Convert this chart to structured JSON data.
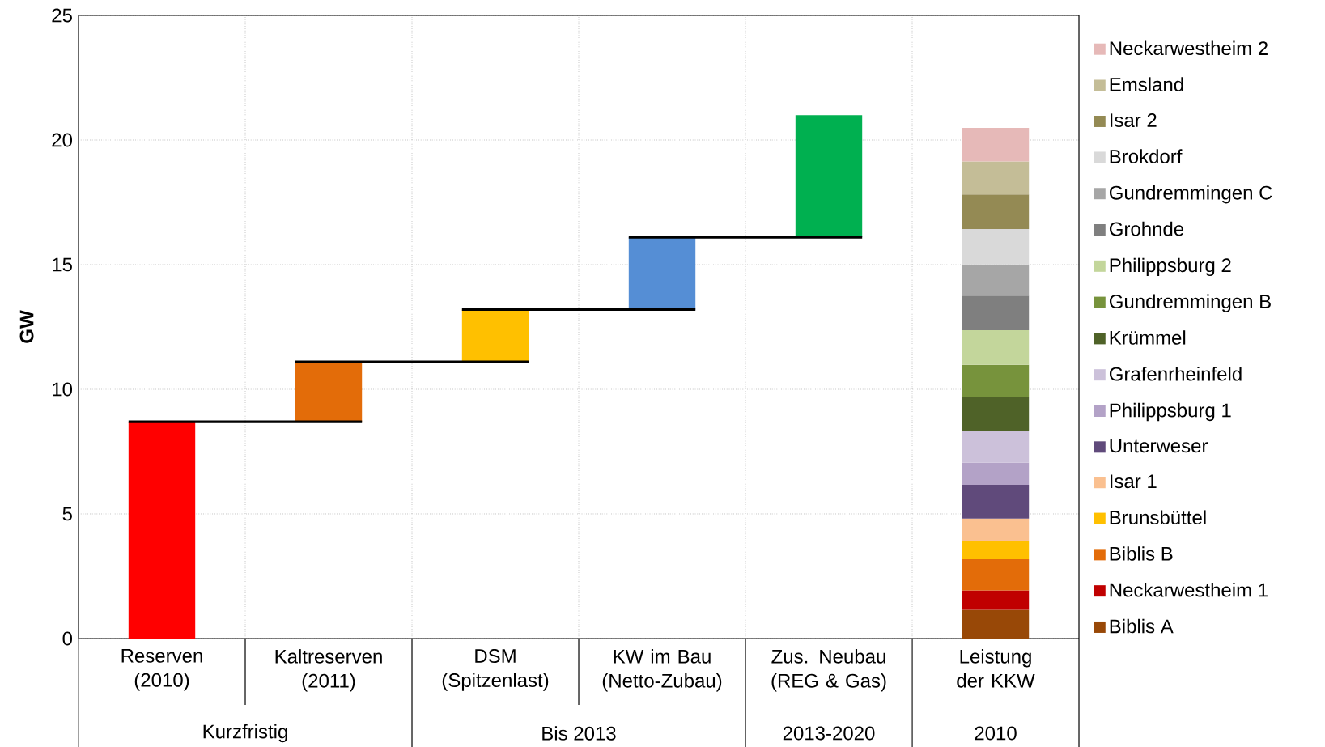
{
  "chart_data": {
    "type": "bar",
    "ylabel": "GW",
    "categories": [
      "Reserven (2010)",
      "Kaltreserven (2011)",
      "DSM (Spitzenlast)",
      "KW im Bau (Netto-Zubau)",
      "Zus. Neubau (REG & Gas)",
      "Leistung der KKW"
    ],
    "annotations": [
      "Kurzfristig",
      "Bis 2013",
      "2013-2020",
      "2010"
    ],
    "stacked": true,
    "series": [
      {
        "values": [
          8.7,
          2.4,
          2.1,
          2.9,
          4.9,
          null
        ],
        "base": [
          0,
          8.7,
          11.1,
          13.2,
          16.1,
          null
        ],
        "colors": [
          "#ff0000",
          "#e36c09",
          "#ffc000",
          "#558ed5",
          "#00b050",
          null
        ]
      },
      {
        "name": "Biblis A",
        "color": "#984807",
        "values": [
          null,
          null,
          null,
          null,
          null,
          1.15
        ]
      },
      {
        "name": "Neckarwestheim 1",
        "color": "#c00000",
        "values": [
          null,
          null,
          null,
          null,
          null,
          0.78
        ]
      },
      {
        "name": "Biblis B",
        "color": "#e36c09",
        "values": [
          null,
          null,
          null,
          null,
          null,
          1.25
        ]
      },
      {
        "name": "Brunsbüttel",
        "color": "#ffc000",
        "values": [
          null,
          null,
          null,
          null,
          null,
          0.75
        ]
      },
      {
        "name": "Isar 1",
        "color": "#fac090",
        "values": [
          null,
          null,
          null,
          null,
          null,
          0.88
        ]
      },
      {
        "name": "Unterweser",
        "color": "#604a7b",
        "values": [
          null,
          null,
          null,
          null,
          null,
          1.36
        ]
      },
      {
        "name": "Philippsburg 1",
        "color": "#b3a2c7",
        "values": [
          null,
          null,
          null,
          null,
          null,
          0.88
        ]
      },
      {
        "name": "Grafenrheinfeld",
        "color": "#ccc1da",
        "values": [
          null,
          null,
          null,
          null,
          null,
          1.29
        ]
      },
      {
        "name": "Krümmel",
        "color": "#4f6228",
        "values": [
          null,
          null,
          null,
          null,
          null,
          1.35
        ]
      },
      {
        "name": "Gundremmingen B",
        "color": "#77933c",
        "values": [
          null,
          null,
          null,
          null,
          null,
          1.29
        ]
      },
      {
        "name": "Philippsburg 2",
        "color": "#c3d69b",
        "values": [
          null,
          null,
          null,
          null,
          null,
          1.39
        ]
      },
      {
        "name": "Grohnde",
        "color": "#7f7f7f",
        "values": [
          null,
          null,
          null,
          null,
          null,
          1.39
        ]
      },
      {
        "name": "Gundremmingen C",
        "color": "#a6a6a6",
        "values": [
          null,
          null,
          null,
          null,
          null,
          1.25
        ]
      },
      {
        "name": "Brokdorf",
        "color": "#d9d9d9",
        "values": [
          null,
          null,
          null,
          null,
          null,
          1.42
        ]
      },
      {
        "name": "Isar 2",
        "color": "#948a54",
        "values": [
          null,
          null,
          null,
          null,
          null,
          1.39
        ]
      },
      {
        "name": "Emsland",
        "color": "#c4bd97",
        "values": [
          null,
          null,
          null,
          null,
          null,
          1.32
        ]
      },
      {
        "name": "Neckarwestheim 2",
        "color": "#e6b9b8",
        "values": [
          null,
          null,
          null,
          null,
          null,
          1.35
        ]
      }
    ],
    "ylim": [
      0,
      25
    ],
    "yticks": [
      0,
      5,
      10,
      15,
      20,
      25
    ],
    "grid": true,
    "legend": "right"
  }
}
